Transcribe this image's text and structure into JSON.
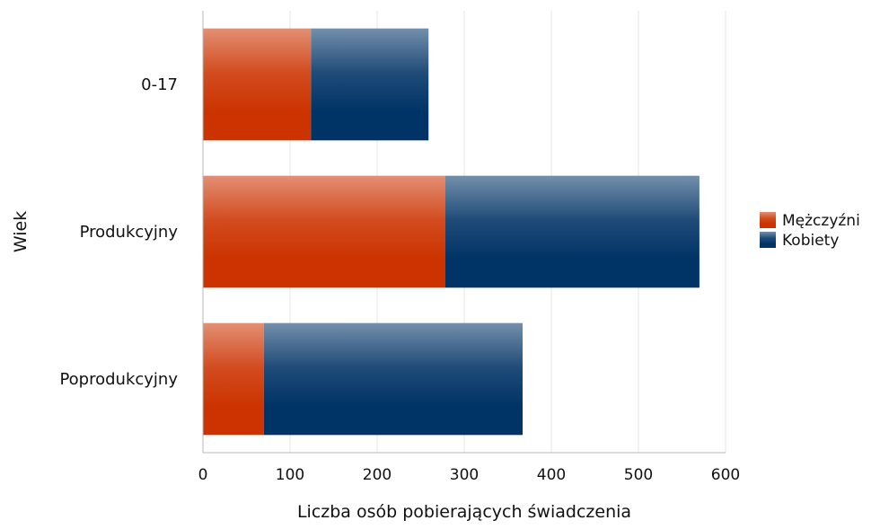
{
  "chart_data": {
    "type": "bar",
    "orientation": "horizontal",
    "stacked": true,
    "categories": [
      "0-17",
      "Produkcyjny",
      "Poprodukcyjny"
    ],
    "series": [
      {
        "name": "Mężczyźni",
        "values": [
          124,
          278,
          70
        ],
        "color": "#cc3300"
      },
      {
        "name": "Kobiety",
        "values": [
          135,
          292,
          297
        ],
        "color": "#003366"
      }
    ],
    "xlabel": "Liczba osób pobierających świadczenia",
    "ylabel": "Wiek",
    "xlim": [
      0,
      600
    ],
    "xticks": [
      0,
      100,
      200,
      300,
      400,
      500,
      600
    ],
    "grid": true,
    "legend_position": "right"
  }
}
